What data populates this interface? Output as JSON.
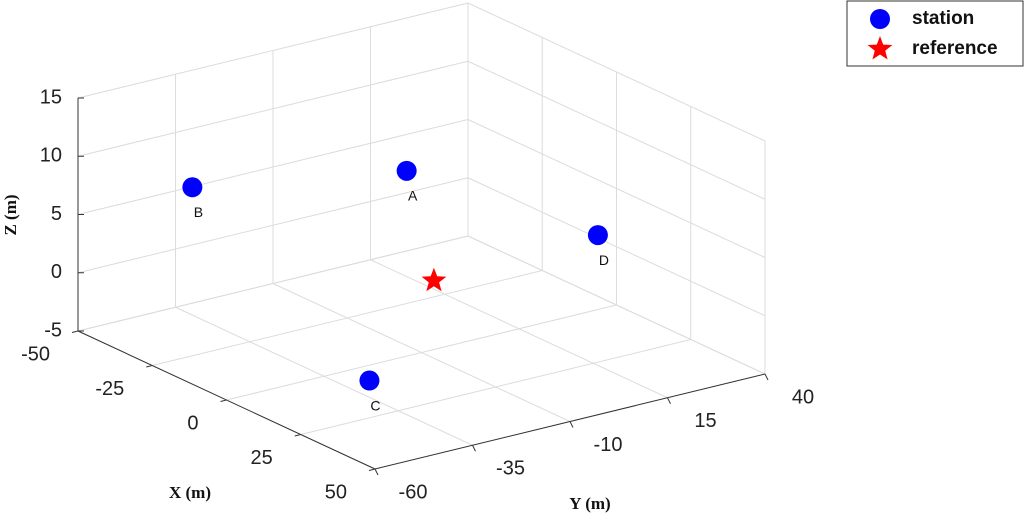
{
  "chart_data": {
    "type": "scatter3d",
    "xlabel": "X (m)",
    "ylabel": "Y (m)",
    "zlabel": "Z (m)",
    "xlim": [
      -50,
      50
    ],
    "ylim": [
      -60,
      40
    ],
    "zlim": [
      -5,
      15
    ],
    "xticks": [
      -50,
      -25,
      0,
      25,
      50
    ],
    "yticks": [
      -60,
      -35,
      -10,
      15,
      40
    ],
    "zticks": [
      -5,
      0,
      5,
      10,
      15
    ],
    "grid": true,
    "legend": "upper right",
    "series": [
      {
        "name": "station",
        "color": "#0000ff",
        "marker": "circle",
        "labels": [
          "A",
          "B",
          "C",
          "D"
        ],
        "x": [
          -5,
          -22,
          35,
          20
        ],
        "y": [
          -10,
          -52,
          -50,
          20
        ],
        "z": [
          10,
          10,
          0,
          5
        ]
      },
      {
        "name": "reference",
        "color": "#ff0000",
        "marker": "star",
        "x": [
          -5
        ],
        "y": [
          -3
        ],
        "z": [
          0
        ]
      }
    ]
  }
}
